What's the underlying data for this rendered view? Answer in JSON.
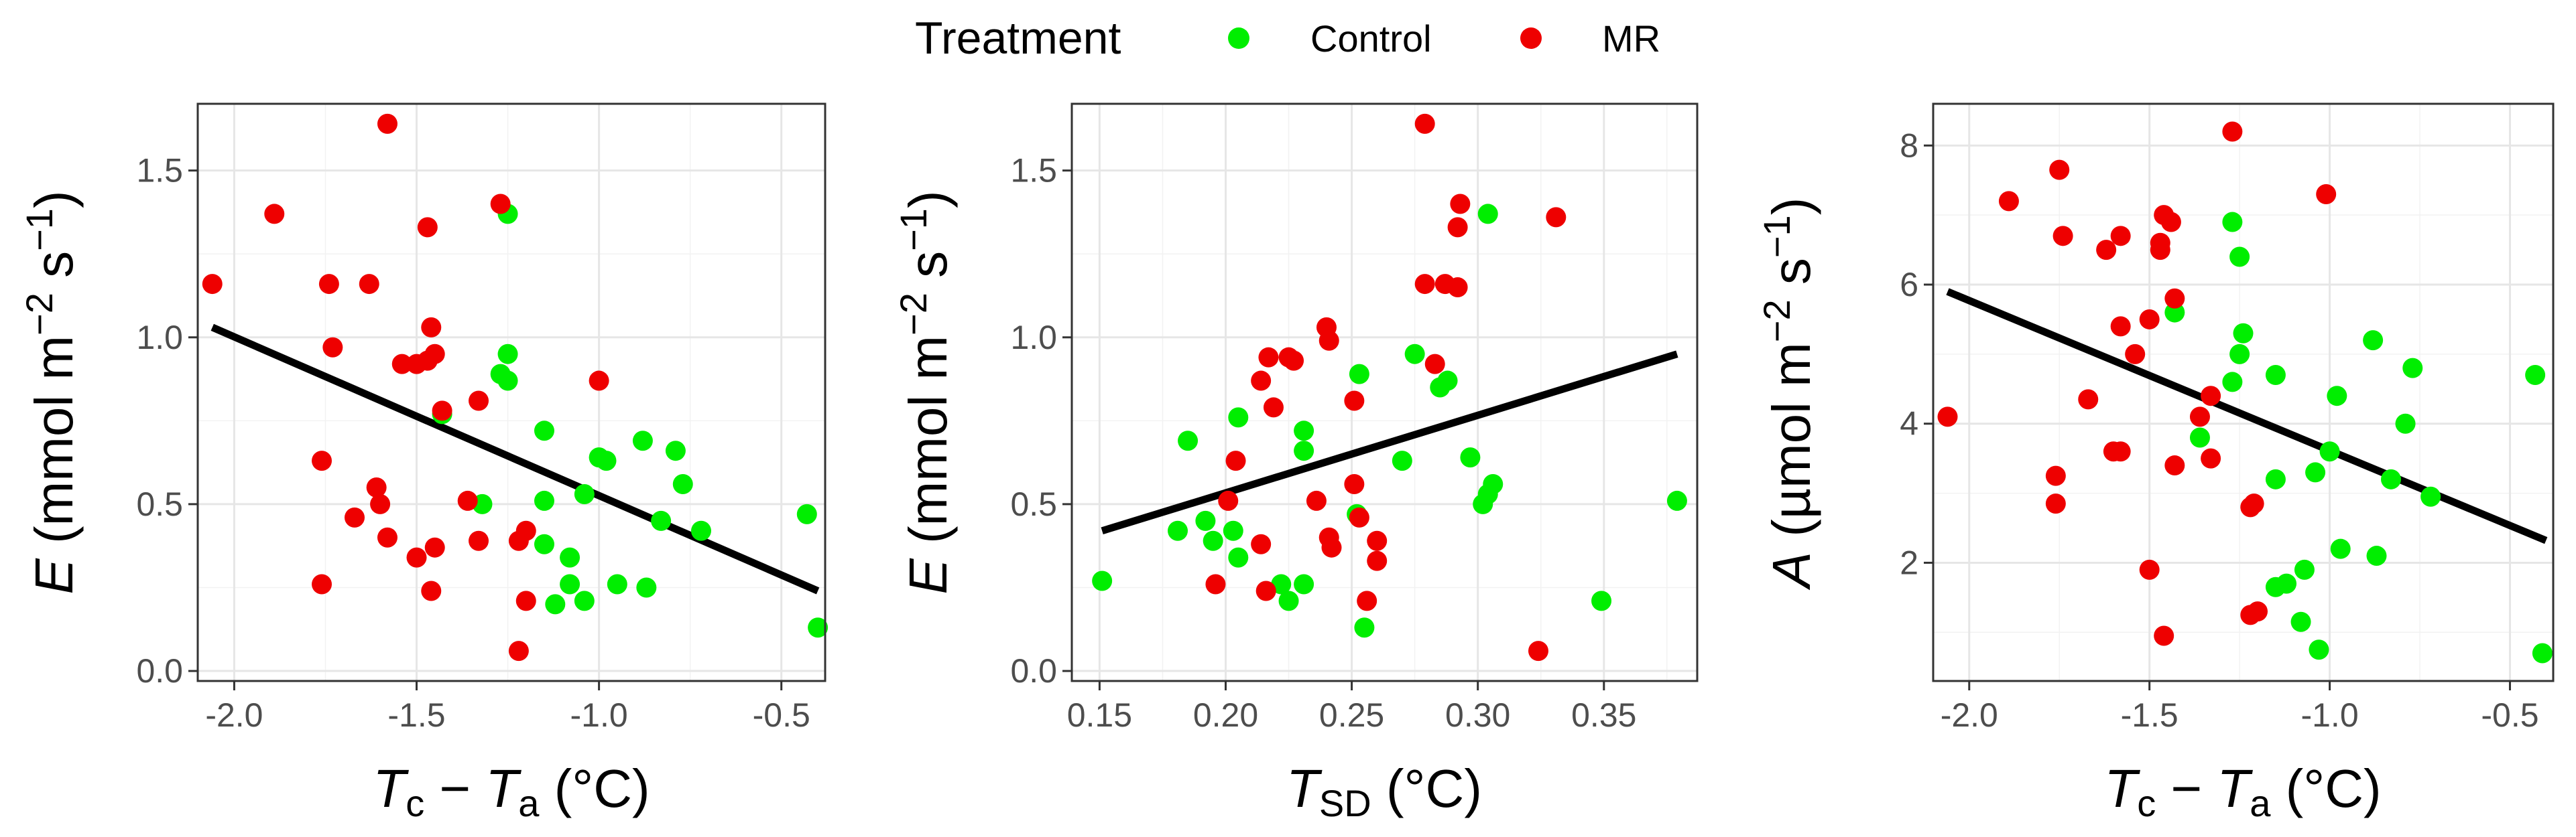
{
  "legend": {
    "title": "Treatment",
    "items": [
      {
        "label": "Control",
        "color": "#00EE00"
      },
      {
        "label": "MR",
        "color": "#EE0000"
      }
    ]
  },
  "chart_data": [
    {
      "type": "scatter",
      "xlabel": {
        "main": "T",
        "sub1": "c",
        "minus": " − ",
        "main2": "T",
        "sub2": "a",
        "unit": " (°C)"
      },
      "ylabel": {
        "var": "E",
        "text1": " (mmol m",
        "sup1": "−2",
        "text2": " s",
        "sup2": "−1",
        "text3": ")"
      },
      "xlim": [
        -2.1,
        -0.38
      ],
      "ylim": [
        -0.03,
        1.7
      ],
      "xticks": [
        -2.0,
        -1.5,
        -1.0,
        -0.5
      ],
      "xtick_labels": [
        "-2.0",
        "-1.5",
        "-1.0",
        "-0.5"
      ],
      "yticks": [
        0.0,
        0.5,
        1.0,
        1.5
      ],
      "ytick_labels": [
        "0.0",
        "0.5",
        "1.0",
        "1.5"
      ],
      "series": [
        {
          "name": "Control",
          "color": "#00EE00",
          "points": [
            [
              -1.25,
              1.37
            ],
            [
              -1.25,
              0.95
            ],
            [
              -1.27,
              0.89
            ],
            [
              -1.25,
              0.87
            ],
            [
              -1.43,
              0.77
            ],
            [
              -1.15,
              0.72
            ],
            [
              -0.88,
              0.69
            ],
            [
              -0.79,
              0.66
            ],
            [
              -1.0,
              0.64
            ],
            [
              -0.98,
              0.63
            ],
            [
              -0.77,
              0.56
            ],
            [
              -1.04,
              0.53
            ],
            [
              -1.15,
              0.51
            ],
            [
              -1.32,
              0.5
            ],
            [
              -0.43,
              0.47
            ],
            [
              -0.83,
              0.45
            ],
            [
              -0.72,
              0.42
            ],
            [
              -1.15,
              0.38
            ],
            [
              -1.08,
              0.34
            ],
            [
              -1.08,
              0.26
            ],
            [
              -0.95,
              0.26
            ],
            [
              -0.87,
              0.25
            ],
            [
              -1.12,
              0.2
            ],
            [
              -1.04,
              0.21
            ],
            [
              -0.4,
              0.13
            ]
          ]
        },
        {
          "name": "MR",
          "color": "#EE0000",
          "points": [
            [
              -1.58,
              1.64
            ],
            [
              -1.27,
              1.4
            ],
            [
              -1.89,
              1.37
            ],
            [
              -1.47,
              1.33
            ],
            [
              -2.06,
              1.16
            ],
            [
              -1.74,
              1.16
            ],
            [
              -1.63,
              1.16
            ],
            [
              -1.46,
              1.03
            ],
            [
              -1.73,
              0.97
            ],
            [
              -1.45,
              0.95
            ],
            [
              -1.47,
              0.93
            ],
            [
              -1.54,
              0.92
            ],
            [
              -1.5,
              0.92
            ],
            [
              -1.0,
              0.87
            ],
            [
              -1.33,
              0.81
            ],
            [
              -1.43,
              0.78
            ],
            [
              -1.76,
              0.63
            ],
            [
              -1.61,
              0.55
            ],
            [
              -1.6,
              0.5
            ],
            [
              -1.36,
              0.51
            ],
            [
              -1.67,
              0.46
            ],
            [
              -1.2,
              0.42
            ],
            [
              -1.58,
              0.4
            ],
            [
              -1.22,
              0.39
            ],
            [
              -1.33,
              0.39
            ],
            [
              -1.45,
              0.37
            ],
            [
              -1.5,
              0.34
            ],
            [
              -1.76,
              0.26
            ],
            [
              -1.46,
              0.24
            ],
            [
              -1.2,
              0.21
            ],
            [
              -1.22,
              0.06
            ]
          ]
        }
      ],
      "fit_line": {
        "x": [
          -2.06,
          -0.4
        ],
        "y": [
          1.03,
          0.24
        ]
      }
    },
    {
      "type": "scatter",
      "xlabel": {
        "main": "T",
        "sub1": "SD",
        "minus": "",
        "main2": "",
        "sub2": "",
        "unit": " (°C)"
      },
      "ylabel": {
        "var": "E",
        "text1": " (mmol m",
        "sup1": "−2",
        "text2": " s",
        "sup2": "−1",
        "text3": ")"
      },
      "xlim": [
        0.139,
        0.387
      ],
      "ylim": [
        -0.03,
        1.7
      ],
      "xticks": [
        0.15,
        0.2,
        0.25,
        0.3,
        0.35
      ],
      "xtick_labels": [
        "0.15",
        "0.20",
        "0.25",
        "0.30",
        "0.35"
      ],
      "yticks": [
        0.0,
        0.5,
        1.0,
        1.5
      ],
      "ytick_labels": [
        "0.0",
        "0.5",
        "1.0",
        "1.5"
      ],
      "series": [
        {
          "name": "Control",
          "color": "#00EE00",
          "points": [
            [
              0.304,
              1.37
            ],
            [
              0.275,
              0.95
            ],
            [
              0.253,
              0.89
            ],
            [
              0.288,
              0.87
            ],
            [
              0.285,
              0.85
            ],
            [
              0.205,
              0.76
            ],
            [
              0.231,
              0.72
            ],
            [
              0.185,
              0.69
            ],
            [
              0.231,
              0.66
            ],
            [
              0.27,
              0.63
            ],
            [
              0.297,
              0.64
            ],
            [
              0.306,
              0.56
            ],
            [
              0.304,
              0.53
            ],
            [
              0.302,
              0.5
            ],
            [
              0.379,
              0.51
            ],
            [
              0.252,
              0.47
            ],
            [
              0.192,
              0.45
            ],
            [
              0.181,
              0.42
            ],
            [
              0.203,
              0.42
            ],
            [
              0.195,
              0.39
            ],
            [
              0.205,
              0.34
            ],
            [
              0.151,
              0.27
            ],
            [
              0.231,
              0.26
            ],
            [
              0.222,
              0.26
            ],
            [
              0.225,
              0.21
            ],
            [
              0.349,
              0.21
            ],
            [
              0.255,
              0.13
            ]
          ]
        },
        {
          "name": "MR",
          "color": "#EE0000",
          "points": [
            [
              0.279,
              1.64
            ],
            [
              0.293,
              1.4
            ],
            [
              0.331,
              1.36
            ],
            [
              0.292,
              1.33
            ],
            [
              0.279,
              1.16
            ],
            [
              0.287,
              1.16
            ],
            [
              0.292,
              1.15
            ],
            [
              0.24,
              1.03
            ],
            [
              0.241,
              0.99
            ],
            [
              0.217,
              0.94
            ],
            [
              0.225,
              0.94
            ],
            [
              0.227,
              0.93
            ],
            [
              0.283,
              0.92
            ],
            [
              0.214,
              0.87
            ],
            [
              0.251,
              0.81
            ],
            [
              0.219,
              0.79
            ],
            [
              0.204,
              0.63
            ],
            [
              0.251,
              0.56
            ],
            [
              0.201,
              0.51
            ],
            [
              0.236,
              0.51
            ],
            [
              0.253,
              0.46
            ],
            [
              0.241,
              0.4
            ],
            [
              0.26,
              0.39
            ],
            [
              0.214,
              0.38
            ],
            [
              0.242,
              0.37
            ],
            [
              0.26,
              0.33
            ],
            [
              0.196,
              0.26
            ],
            [
              0.216,
              0.24
            ],
            [
              0.256,
              0.21
            ],
            [
              0.324,
              0.06
            ]
          ]
        }
      ],
      "fit_line": {
        "x": [
          0.151,
          0.379
        ],
        "y": [
          0.42,
          0.95
        ]
      }
    },
    {
      "type": "scatter",
      "xlabel": {
        "main": "T",
        "sub1": "c",
        "minus": " − ",
        "main2": "T",
        "sub2": "a",
        "unit": " (°C)"
      },
      "ylabel": {
        "var": "A",
        "text1": " (µmol m",
        "sup1": "−2",
        "text2": " s",
        "sup2": "−1",
        "text3": ")"
      },
      "xlim": [
        -2.1,
        -0.38
      ],
      "ylim": [
        0.3,
        8.6
      ],
      "xticks": [
        -2.0,
        -1.5,
        -1.0,
        -0.5
      ],
      "xtick_labels": [
        "-2.0",
        "-1.5",
        "-1.0",
        "-0.5"
      ],
      "yticks": [
        2,
        4,
        6,
        8
      ],
      "ytick_labels": [
        "2",
        "4",
        "6",
        "8"
      ],
      "series": [
        {
          "name": "Control",
          "color": "#00EE00",
          "points": [
            [
              -1.27,
              6.9
            ],
            [
              -1.25,
              6.4
            ],
            [
              -1.43,
              5.6
            ],
            [
              -1.24,
              5.3
            ],
            [
              -0.88,
              5.2
            ],
            [
              -1.25,
              5.0
            ],
            [
              -0.77,
              4.8
            ],
            [
              -1.15,
              4.7
            ],
            [
              -0.43,
              4.7
            ],
            [
              -1.27,
              4.6
            ],
            [
              -0.98,
              4.4
            ],
            [
              -0.79,
              4.0
            ],
            [
              -1.36,
              3.8
            ],
            [
              -1.0,
              3.6
            ],
            [
              -1.04,
              3.3
            ],
            [
              -0.83,
              3.2
            ],
            [
              -1.15,
              3.2
            ],
            [
              -0.72,
              2.95
            ],
            [
              -0.97,
              2.2
            ],
            [
              -0.87,
              2.1
            ],
            [
              -1.07,
              1.9
            ],
            [
              -1.12,
              1.7
            ],
            [
              -1.15,
              1.65
            ],
            [
              -1.08,
              1.15
            ],
            [
              -1.03,
              0.75
            ],
            [
              -0.41,
              0.7
            ]
          ]
        },
        {
          "name": "MR",
          "color": "#EE0000",
          "points": [
            [
              -1.27,
              8.2
            ],
            [
              -1.75,
              7.65
            ],
            [
              -1.01,
              7.3
            ],
            [
              -1.89,
              7.2
            ],
            [
              -1.46,
              7.0
            ],
            [
              -1.44,
              6.9
            ],
            [
              -1.74,
              6.7
            ],
            [
              -1.58,
              6.7
            ],
            [
              -1.47,
              6.6
            ],
            [
              -1.62,
              6.5
            ],
            [
              -1.47,
              6.5
            ],
            [
              -1.43,
              5.8
            ],
            [
              -1.5,
              5.5
            ],
            [
              -1.58,
              5.4
            ],
            [
              -1.54,
              5.0
            ],
            [
              -1.33,
              4.4
            ],
            [
              -1.67,
              4.35
            ],
            [
              -1.36,
              4.1
            ],
            [
              -2.06,
              4.1
            ],
            [
              -1.6,
              3.6
            ],
            [
              -1.58,
              3.6
            ],
            [
              -1.33,
              3.5
            ],
            [
              -1.43,
              3.4
            ],
            [
              -1.76,
              3.25
            ],
            [
              -1.76,
              2.85
            ],
            [
              -1.21,
              2.85
            ],
            [
              -1.22,
              2.8
            ],
            [
              -1.5,
              1.9
            ],
            [
              -1.2,
              1.3
            ],
            [
              -1.22,
              1.25
            ],
            [
              -1.46,
              0.95
            ]
          ]
        }
      ],
      "fit_line": {
        "x": [
          -2.06,
          -0.4
        ],
        "y": [
          5.9,
          2.32
        ]
      }
    }
  ]
}
